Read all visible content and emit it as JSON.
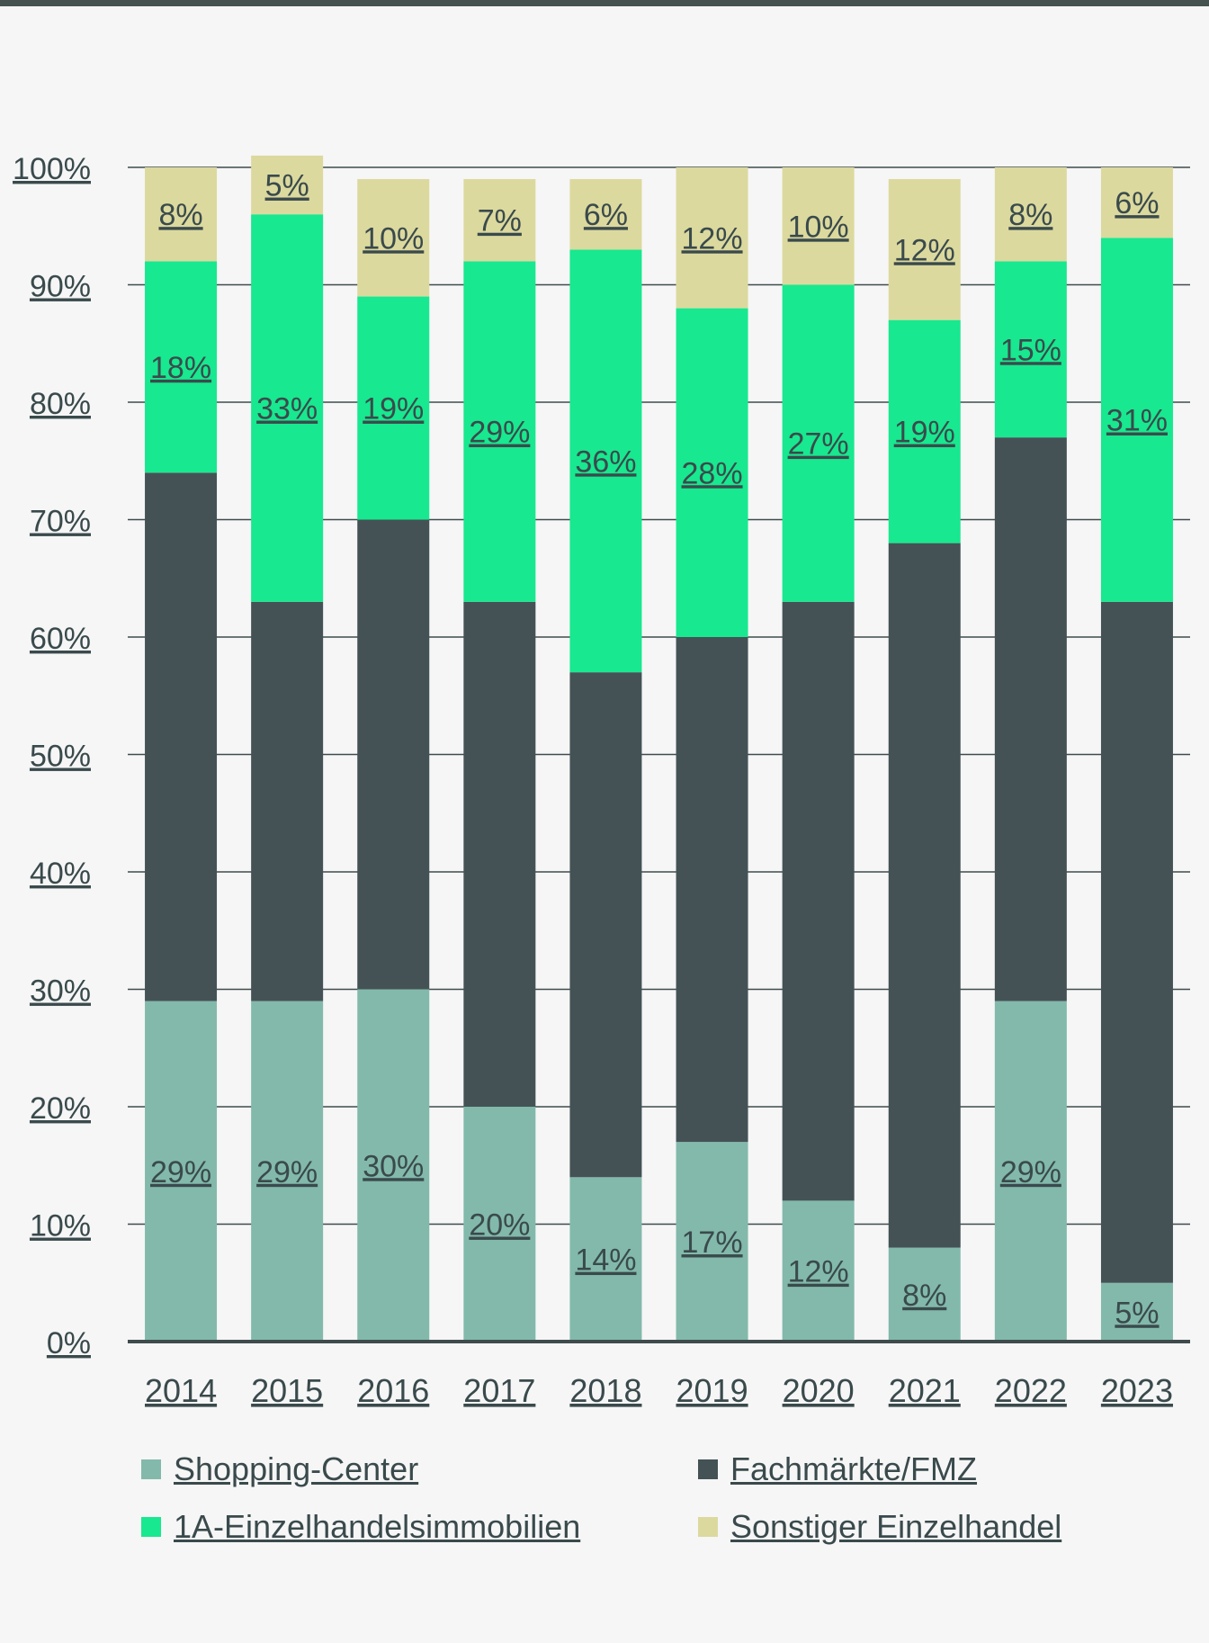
{
  "chart_data": {
    "type": "bar",
    "stacked": true,
    "categories": [
      "2014",
      "2015",
      "2016",
      "2017",
      "2018",
      "2019",
      "2020",
      "2021",
      "2022",
      "2023"
    ],
    "ylim": [
      0,
      100
    ],
    "y_ticks": [
      "0%",
      "10%",
      "20%",
      "30%",
      "40%",
      "50%",
      "60%",
      "70%",
      "80%",
      "90%",
      "100%"
    ],
    "grid": true,
    "legend_position": "bottom",
    "series": [
      {
        "name": "Shopping-Center",
        "color": "#82b9ab",
        "values": [
          29,
          29,
          30,
          20,
          14,
          17,
          12,
          8,
          29,
          5
        ],
        "labels": [
          "29%",
          "29%",
          "30%",
          "20%",
          "14%",
          "17%",
          "12%",
          "8%",
          "29%",
          "5%"
        ]
      },
      {
        "name": "Fachmärkte/FMZ",
        "color": "#445256",
        "values": [
          45,
          34,
          40,
          43,
          43,
          43,
          51,
          60,
          48,
          58
        ],
        "labels": [
          "",
          "",
          "",
          "",
          "",
          "",
          "",
          "",
          "",
          ""
        ]
      },
      {
        "name": "1A-Einzelhandelsimmobilien",
        "color": "#18e88f",
        "values": [
          18,
          33,
          19,
          29,
          36,
          28,
          27,
          19,
          15,
          31
        ],
        "labels": [
          "18%",
          "33%",
          "19%",
          "29%",
          "36%",
          "28%",
          "27%",
          "19%",
          "15%",
          "31%"
        ]
      },
      {
        "name": "Sonstiger Einzelhandel",
        "color": "#dcd99e",
        "values": [
          8,
          5,
          10,
          7,
          6,
          12,
          10,
          12,
          8,
          6
        ],
        "labels": [
          "8%",
          "5%",
          "10%",
          "7%",
          "6%",
          "12%",
          "10%",
          "12%",
          "8%",
          "6%"
        ]
      }
    ]
  },
  "legend": [
    {
      "label": "Shopping-Center",
      "color": "#82b9ab"
    },
    {
      "label": "Fachmärkte/FMZ",
      "color": "#445256"
    },
    {
      "label": "1A-Einzelhandelsimmobilien",
      "color": "#18e88f"
    },
    {
      "label": "Sonstiger Einzelhandel",
      "color": "#dcd99e"
    }
  ]
}
